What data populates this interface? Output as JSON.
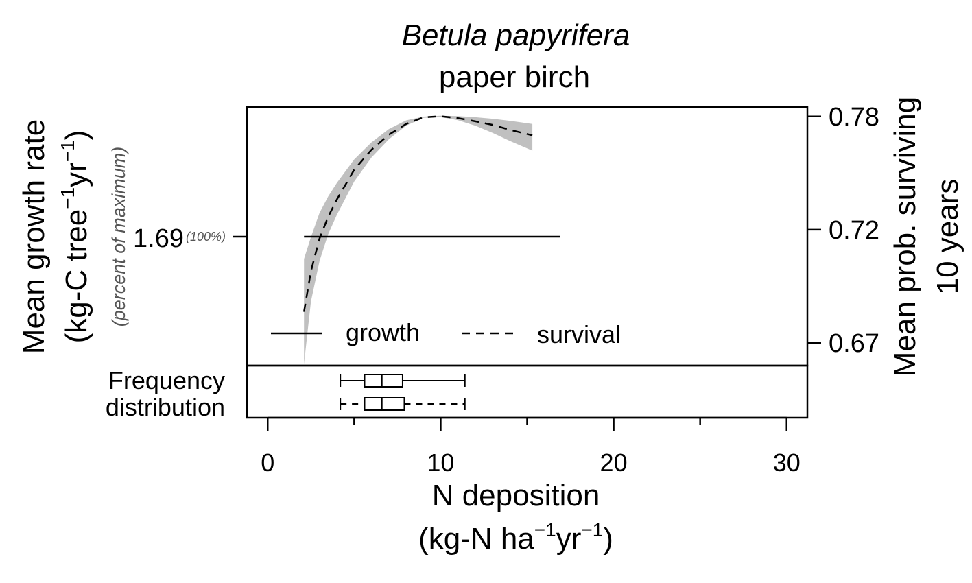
{
  "chart_data": {
    "type": "line",
    "title": "Betula papyrifera",
    "subtitle": "paper birch",
    "xlabel": "N deposition",
    "xlabel_units_base": "(kg-N ha",
    "xlabel_units_mid": "yr",
    "xlabel_units_end": ")",
    "superscript": "−1",
    "xlim": [
      -1.2,
      31.2
    ],
    "x_ticks": [
      0,
      10,
      20,
      30
    ],
    "x_minor_ticks": [
      5,
      15,
      25
    ],
    "y_left": {
      "label": "Mean growth rate",
      "units_base": "(kg-C tree",
      "units_mid": "yr",
      "units_end": ")",
      "sublabel": "(percent of maximum)",
      "tick_value": "1.69",
      "tick_percent": "(100%)"
    },
    "y_right": {
      "label_line1": "Mean prob. surviving",
      "label_line2": "10 years",
      "ylim": [
        0.6465,
        0.7835
      ],
      "ticks": [
        "0.78",
        "0.72",
        "0.67"
      ],
      "tick_values": [
        0.7785,
        0.7185,
        0.6585
      ]
    },
    "series": [
      {
        "name": "growth",
        "style": "solid",
        "x": [
          2.1,
          16.9
        ],
        "y": [
          1.69,
          1.69
        ]
      },
      {
        "name": "survival",
        "style": "dashed",
        "x": [
          2.1,
          2.5,
          3.0,
          3.5,
          4.0,
          5.0,
          6.0,
          7.0,
          8.0,
          9.0,
          10.0,
          11.0,
          12.0,
          13.0,
          14.0,
          15.3
        ],
        "y": [
          0.675,
          0.6965,
          0.7139,
          0.7254,
          0.7345,
          0.7502,
          0.7609,
          0.7688,
          0.7745,
          0.778,
          0.7786,
          0.7776,
          0.7759,
          0.774,
          0.7714,
          0.7685
        ],
        "ci_low": [
          0.6473,
          0.6805,
          0.702,
          0.7162,
          0.7264,
          0.744,
          0.7568,
          0.7664,
          0.7736,
          0.7778,
          0.7782,
          0.7765,
          0.7736,
          0.7698,
          0.7655,
          0.7604
        ],
        "ci_high": [
          0.703,
          0.7146,
          0.7275,
          0.7362,
          0.7433,
          0.7557,
          0.7648,
          0.7718,
          0.7764,
          0.7784,
          0.7789,
          0.7787,
          0.7781,
          0.7773,
          0.7762,
          0.7745
        ]
      }
    ],
    "legend": {
      "position": "bottom",
      "entries": [
        {
          "label": "growth",
          "style": "solid"
        },
        {
          "label": "survival",
          "style": "dashed"
        }
      ]
    },
    "frequency_distribution": {
      "label_line1": "Frequency",
      "label_line2": "distribution",
      "boxplots": [
        {
          "series": "growth",
          "whisker_style": "solid",
          "min": 4.2,
          "q1": 5.6,
          "median": 6.6,
          "q3": 7.8,
          "max": 11.4
        },
        {
          "series": "survival",
          "whisker_style": "dashed",
          "min": 4.2,
          "q1": 5.6,
          "median": 6.6,
          "q3": 7.9,
          "max": 11.4
        }
      ]
    }
  }
}
